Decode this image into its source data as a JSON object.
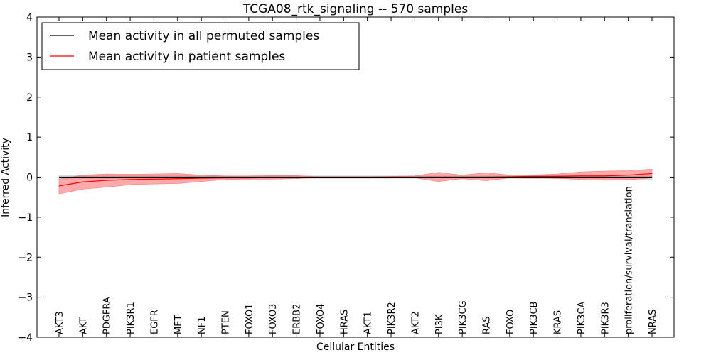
{
  "chart_data": {
    "type": "line",
    "title": "TCGA08_rtk_signaling -- 570 samples",
    "xlabel": "Cellular Entities",
    "ylabel": "Inferred Activity",
    "ylim": [
      -4,
      4
    ],
    "yticks": [
      -4,
      -3,
      -2,
      -1,
      0,
      1,
      2,
      3,
      4
    ],
    "grid": false,
    "legend_position": "top-left",
    "categories": [
      "AKT3",
      "AKT",
      "PDGFRA",
      "PIK3R1",
      "EGFR",
      "MET",
      "NF1",
      "PTEN",
      "FOXO1",
      "FOXO3",
      "ERBB2",
      "FOXO4",
      "HRAS",
      "AKT1",
      "PIK3R2",
      "AKT2",
      "PI3K",
      "PIK3CG",
      "RAS",
      "FOXO",
      "PIK3CB",
      "KRAS",
      "PIK3CA",
      "PIK3R3",
      "proliferation/survival/translation",
      "NRAS"
    ],
    "series": [
      {
        "name": "Mean activity in all permuted samples",
        "color": "#000000",
        "band_color": "#bbbbbb",
        "values": [
          0.0,
          0.0,
          0.0,
          0.0,
          0.0,
          0.0,
          0.0,
          0.0,
          0.0,
          0.0,
          0.0,
          0.0,
          0.0,
          0.0,
          0.0,
          0.0,
          0.0,
          0.0,
          0.0,
          0.0,
          0.0,
          0.0,
          0.0,
          0.0,
          0.0,
          0.0
        ],
        "band_upper": [
          0.05,
          0.04,
          0.04,
          0.04,
          0.04,
          0.04,
          0.03,
          0.03,
          0.03,
          0.03,
          0.03,
          0.03,
          0.03,
          0.03,
          0.03,
          0.03,
          0.03,
          0.03,
          0.03,
          0.03,
          0.04,
          0.04,
          0.04,
          0.04,
          0.05,
          0.05
        ],
        "band_lower": [
          -0.05,
          -0.04,
          -0.04,
          -0.04,
          -0.04,
          -0.04,
          -0.03,
          -0.03,
          -0.03,
          -0.03,
          -0.03,
          -0.03,
          -0.03,
          -0.03,
          -0.03,
          -0.03,
          -0.03,
          -0.03,
          -0.03,
          -0.03,
          -0.04,
          -0.04,
          -0.04,
          -0.04,
          -0.05,
          -0.05
        ]
      },
      {
        "name": "Mean activity in patient samples",
        "color": "#ff0000",
        "band_color": "#ff6666",
        "values": [
          -0.22,
          -0.12,
          -0.08,
          -0.06,
          -0.05,
          -0.04,
          -0.03,
          -0.02,
          -0.02,
          -0.01,
          -0.01,
          0.0,
          0.0,
          0.0,
          0.0,
          0.0,
          0.0,
          0.0,
          0.0,
          0.01,
          0.02,
          0.02,
          0.03,
          0.03,
          0.05,
          0.09
        ],
        "band_upper": [
          -0.05,
          0.05,
          0.08,
          0.07,
          0.08,
          0.09,
          0.05,
          0.03,
          0.03,
          0.04,
          0.04,
          0.01,
          0.01,
          0.01,
          0.02,
          0.03,
          0.12,
          0.05,
          0.11,
          0.05,
          0.05,
          0.08,
          0.13,
          0.15,
          0.16,
          0.2
        ],
        "band_lower": [
          -0.42,
          -0.3,
          -0.25,
          -0.19,
          -0.17,
          -0.16,
          -0.11,
          -0.06,
          -0.05,
          -0.05,
          -0.04,
          -0.01,
          -0.01,
          -0.01,
          -0.01,
          -0.02,
          -0.11,
          -0.04,
          -0.09,
          -0.02,
          -0.01,
          -0.03,
          -0.06,
          -0.08,
          -0.07,
          -0.02
        ]
      }
    ]
  }
}
